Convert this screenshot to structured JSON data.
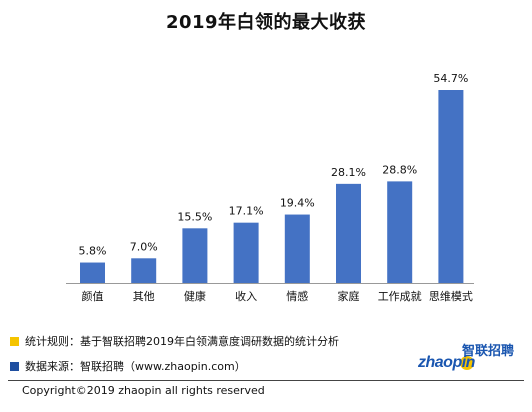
{
  "chart_data": {
    "type": "bar",
    "title": "2019年白领的最大收获",
    "categories": [
      "颜值",
      "其他",
      "健康",
      "收入",
      "情感",
      "家庭",
      "工作成就",
      "思维模式"
    ],
    "values": [
      5.8,
      7.0,
      15.5,
      17.1,
      19.4,
      28.1,
      28.8,
      54.7
    ],
    "value_labels": [
      "5.8%",
      "7.0%",
      "15.5%",
      "17.1%",
      "19.4%",
      "28.1%",
      "28.8%",
      "54.7%"
    ],
    "ylim": [
      0,
      60
    ],
    "grid": false,
    "bar_color": "#4472c4"
  },
  "footer": {
    "rule_text": "统计规则：基于智联招聘2019年白领满意度调研数据的统计分析",
    "source_text": "数据来源：智联招聘（www.zhaopin.com）",
    "copyright": "Copyright©2019 zhaopin all rights reserved",
    "rule_square_color": "#f5c400",
    "source_square_color": "#1f4fa0"
  },
  "logo": {
    "latin": "zhaopin",
    "cn": "智联招聘",
    "brand_color": "#1a56b0"
  }
}
